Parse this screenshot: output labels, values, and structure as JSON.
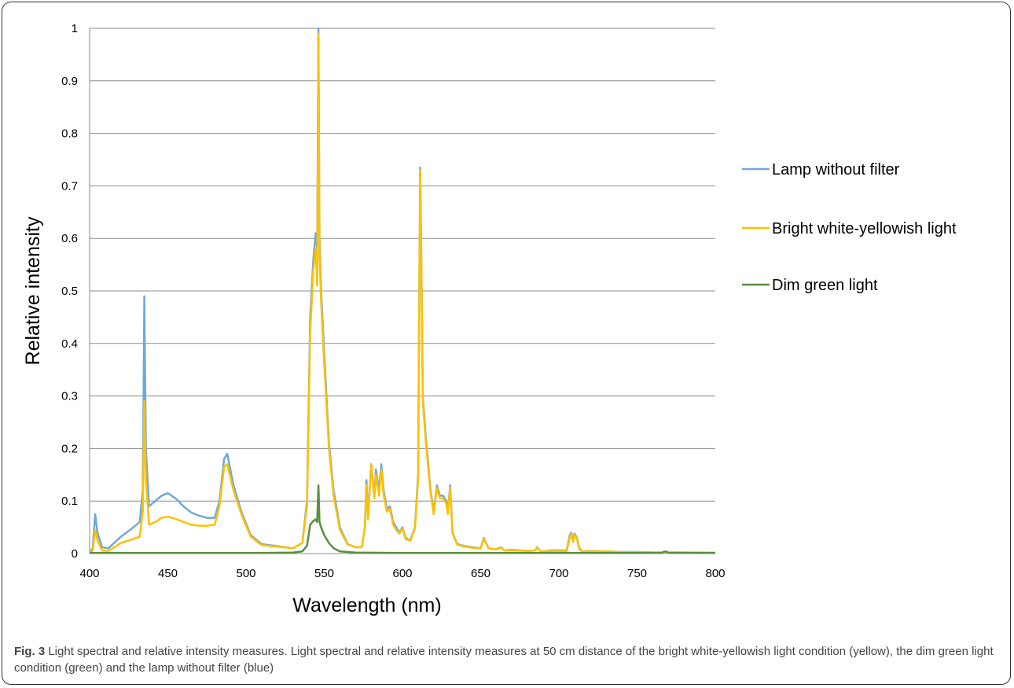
{
  "caption": {
    "label": "Fig. 3",
    "text": "Light spectral and relative intensity measures. Light spectral and relative intensity measures at 50 cm distance of the bright white-yellowish light condition (yellow), the dim green light condition (green) and the lamp without filter (blue)"
  },
  "chart_data": {
    "type": "line",
    "title": "",
    "xlabel": "Wavelength (nm)",
    "ylabel": "Relative intensity",
    "xlim": [
      400,
      800
    ],
    "ylim": [
      0,
      1
    ],
    "xticks": [
      "400",
      "450",
      "500",
      "550",
      "600",
      "650",
      "700",
      "750",
      "800"
    ],
    "yticks": [
      "0",
      "0.1",
      "0.2",
      "0.3",
      "0.4",
      "0.5",
      "0.6",
      "0.7",
      "0.8",
      "0.9",
      "1"
    ],
    "grid": "horizontal",
    "legend_position": "right",
    "series": [
      {
        "name": "Lamp without filter",
        "color": "#6fa8dc",
        "x": [
          400,
          402,
          403.5,
          405,
          408,
          412,
          420,
          428,
          432,
          434,
          435,
          436,
          438,
          442,
          446,
          450,
          455,
          460,
          465,
          470,
          475,
          480,
          483,
          486,
          488,
          492,
          497,
          503,
          510,
          520,
          530,
          536,
          539,
          541,
          543,
          544.5,
          545.5,
          546.3,
          547,
          548,
          550,
          553,
          556,
          560,
          565,
          570,
          574,
          576,
          577,
          578,
          580,
          582,
          583,
          585,
          586.5,
          588,
          590,
          592,
          594,
          596,
          598,
          600,
          602,
          605,
          608,
          610,
          611.3,
          612,
          613,
          615,
          618,
          620,
          622,
          624,
          626,
          628,
          629,
          630.5,
          632,
          635,
          640,
          645,
          650,
          652,
          655,
          660,
          663,
          665,
          670,
          680,
          685,
          686,
          688,
          690,
          695,
          700,
          705,
          707,
          708,
          709,
          710,
          711.5,
          713,
          715,
          720,
          730,
          740,
          750,
          760,
          770,
          780,
          790,
          800
        ],
        "y": [
          0.002,
          0.01,
          0.075,
          0.04,
          0.012,
          0.01,
          0.032,
          0.05,
          0.06,
          0.12,
          0.49,
          0.2,
          0.09,
          0.1,
          0.11,
          0.115,
          0.105,
          0.09,
          0.078,
          0.072,
          0.068,
          0.068,
          0.1,
          0.18,
          0.19,
          0.13,
          0.08,
          0.035,
          0.018,
          0.014,
          0.01,
          0.02,
          0.1,
          0.45,
          0.56,
          0.61,
          0.58,
          1.0,
          0.6,
          0.5,
          0.38,
          0.21,
          0.12,
          0.05,
          0.018,
          0.012,
          0.012,
          0.05,
          0.14,
          0.07,
          0.17,
          0.11,
          0.16,
          0.12,
          0.17,
          0.12,
          0.085,
          0.09,
          0.06,
          0.05,
          0.04,
          0.05,
          0.03,
          0.025,
          0.05,
          0.15,
          0.735,
          0.58,
          0.3,
          0.22,
          0.12,
          0.08,
          0.13,
          0.11,
          0.11,
          0.1,
          0.08,
          0.13,
          0.04,
          0.018,
          0.014,
          0.012,
          0.01,
          0.03,
          0.01,
          0.008,
          0.012,
          0.006,
          0.007,
          0.005,
          0.006,
          0.012,
          0.005,
          0.004,
          0.006,
          0.006,
          0.006,
          0.035,
          0.04,
          0.025,
          0.038,
          0.03,
          0.01,
          0.004,
          0.005,
          0.004,
          0.003,
          0.003,
          0.002,
          0.002,
          0.002,
          0.002,
          0.002
        ]
      },
      {
        "name": "Bright white-yellowish light",
        "color": "#ffc000",
        "x": [
          400,
          402,
          403.5,
          405,
          408,
          412,
          420,
          428,
          432,
          434,
          435,
          436,
          438,
          442,
          446,
          450,
          455,
          460,
          465,
          470,
          475,
          480,
          483,
          486,
          488,
          492,
          497,
          503,
          510,
          520,
          530,
          536,
          539,
          541,
          543,
          544.5,
          545.5,
          546.3,
          547,
          548,
          550,
          553,
          556,
          560,
          565,
          570,
          574,
          576,
          577,
          578,
          580,
          582,
          583,
          585,
          586.5,
          588,
          590,
          592,
          594,
          596,
          598,
          600,
          602,
          605,
          608,
          610,
          611.3,
          612,
          613,
          615,
          618,
          620,
          622,
          624,
          626,
          628,
          629,
          630.5,
          632,
          635,
          640,
          645,
          650,
          652,
          655,
          660,
          663,
          665,
          670,
          680,
          685,
          686,
          688,
          690,
          695,
          700,
          705,
          707,
          708,
          709,
          710,
          711.5,
          713,
          715,
          720,
          730,
          740,
          750,
          760,
          770,
          780,
          790,
          800
        ],
        "y": [
          0.001,
          0.006,
          0.045,
          0.025,
          0.006,
          0.005,
          0.02,
          0.028,
          0.032,
          0.08,
          0.29,
          0.14,
          0.055,
          0.06,
          0.068,
          0.07,
          0.066,
          0.06,
          0.055,
          0.053,
          0.053,
          0.055,
          0.09,
          0.165,
          0.17,
          0.12,
          0.075,
          0.032,
          0.016,
          0.013,
          0.01,
          0.02,
          0.09,
          0.42,
          0.54,
          0.58,
          0.51,
          0.99,
          0.57,
          0.48,
          0.36,
          0.2,
          0.11,
          0.045,
          0.017,
          0.012,
          0.012,
          0.05,
          0.13,
          0.065,
          0.17,
          0.105,
          0.15,
          0.11,
          0.16,
          0.11,
          0.08,
          0.085,
          0.055,
          0.045,
          0.038,
          0.047,
          0.028,
          0.024,
          0.048,
          0.14,
          0.73,
          0.57,
          0.29,
          0.21,
          0.115,
          0.075,
          0.125,
          0.105,
          0.105,
          0.095,
          0.075,
          0.125,
          0.038,
          0.017,
          0.013,
          0.011,
          0.01,
          0.028,
          0.01,
          0.008,
          0.011,
          0.006,
          0.006,
          0.005,
          0.006,
          0.011,
          0.005,
          0.004,
          0.005,
          0.005,
          0.005,
          0.03,
          0.038,
          0.022,
          0.035,
          0.028,
          0.009,
          0.004,
          0.004,
          0.004,
          0.003,
          0.003,
          0.002,
          0.002,
          0.002,
          0.002,
          0.002
        ]
      },
      {
        "name": "Dim green light",
        "color": "#5a8f3c",
        "x": [
          400,
          420,
          450,
          480,
          510,
          530,
          536,
          539,
          541,
          543,
          544.5,
          545.5,
          546.3,
          547,
          548,
          550,
          553,
          556,
          560,
          570,
          600,
          650,
          700,
          750,
          766,
          768,
          770,
          800
        ],
        "y": [
          0.001,
          0.001,
          0.001,
          0.001,
          0.001,
          0.002,
          0.004,
          0.015,
          0.055,
          0.062,
          0.065,
          0.06,
          0.13,
          0.06,
          0.05,
          0.035,
          0.02,
          0.01,
          0.004,
          0.002,
          0.001,
          0.001,
          0.001,
          0.001,
          0.002,
          0.004,
          0.002,
          0.001
        ]
      }
    ]
  }
}
